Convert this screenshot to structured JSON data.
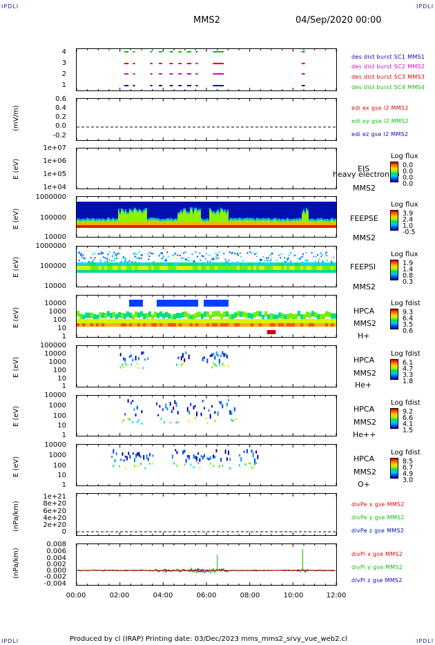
{
  "corners": {
    "tl": "IPDLI",
    "tr": "IPDLI",
    "bl": "IPDLI",
    "br": "IPDLI"
  },
  "header": {
    "spacecraft": "MMS2",
    "date": "04/Sep/2020 00:00"
  },
  "footer": {
    "text": "Produced by cl (IRAP)   Printing date: 03/Dec/2023   mms_mms2_srvy_vue_web2.cl"
  },
  "colors": {
    "red": "#e00000",
    "green": "#00c000",
    "blue": "#0000c0",
    "magenta": "#d000d0"
  },
  "xaxis": {
    "ticks": [
      "00:00",
      "02:00",
      "04:00",
      "06:00",
      "08:00",
      "10:00",
      "12:00"
    ]
  },
  "chart_data": [
    {
      "type": "scatter",
      "name": "burst availability",
      "yticks": [
        "4",
        "3",
        "2",
        "1"
      ],
      "legend": [
        "des dist burst SC1 MMS1",
        "des dist burst SC2 MMS2",
        "des dist burst SC3 MMS3",
        "des dist burst SC4 MMS4"
      ],
      "intervals_hours": [
        [
          2.2,
          2.4
        ],
        [
          2.6,
          2.7
        ],
        [
          3.4,
          3.5
        ],
        [
          3.8,
          3.95
        ],
        [
          4.3,
          4.45
        ],
        [
          4.7,
          4.85
        ],
        [
          5.1,
          5.3
        ],
        [
          5.5,
          5.6
        ],
        [
          6.3,
          6.8
        ],
        [
          10.4,
          10.55
        ]
      ]
    },
    {
      "type": "line",
      "ylabel": "(mV/m)",
      "yticks": [
        "0.6",
        "0.4",
        "0.2",
        "0.0",
        "-0.2"
      ],
      "ylim": [
        -0.2,
        0.6
      ],
      "legend": [
        "edi ex gse l2 MMS2",
        "edi ey gse l2 MMS2",
        "edi ez gse l2 MMS2"
      ]
    },
    {
      "type": "heatmap",
      "ylabel": "E (eV)",
      "yticks": [
        "1e+07",
        "1e+06",
        "1e+05",
        "1e+04"
      ],
      "names": [
        "EIS",
        "MMS2"
      ],
      "overlay": "heavy electron to",
      "cbtitle": "Log flux",
      "cbvals": [
        "0.0",
        "0.0",
        "0.0",
        "0.0"
      ]
    },
    {
      "type": "heatmap",
      "ylabel": "E (eV)",
      "yticks": [
        "1000000",
        "100000",
        "10000"
      ],
      "names": [
        "FEEPSE",
        "MMS2"
      ],
      "cbtitle": "Log flux",
      "cbvals": [
        "3.9",
        "2.4",
        "1.0",
        "-0.5"
      ]
    },
    {
      "type": "heatmap",
      "ylabel": "E (eV)",
      "yticks": [
        "1000000",
        "100000",
        "10000"
      ],
      "names": [
        "FEEPSI",
        "MMS2"
      ],
      "cbtitle": "Log flux",
      "cbvals": [
        "1.9",
        "1.4",
        "0.8",
        "0.3"
      ]
    },
    {
      "type": "heatmap",
      "ylabel": "E (eV)",
      "yticks": [
        "10000",
        "1000",
        "100",
        "10",
        "1"
      ],
      "names": [
        "HPCA",
        "MMS2",
        "H+"
      ],
      "cbtitle": "Log fdist",
      "cbvals": [
        "9.3",
        "6.4",
        "3.5",
        "0.6"
      ]
    },
    {
      "type": "heatmap",
      "ylabel": "E (eV)",
      "yticks": [
        "100000",
        "10000",
        "1000",
        "100",
        "10",
        "1"
      ],
      "names": [
        "HPCA",
        "MMS2",
        "He+"
      ],
      "cbtitle": "Log fdist",
      "cbvals": [
        "6.1",
        "4.7",
        "3.3",
        "1.8"
      ]
    },
    {
      "type": "heatmap",
      "ylabel": "E (eV)",
      "yticks": [
        "10000",
        "1000",
        "100",
        "10",
        "1"
      ],
      "names": [
        "HPCA",
        "MMS2",
        "He++"
      ],
      "cbtitle": "Log fdist",
      "cbvals": [
        "9.2",
        "6.6",
        "4.1",
        "1.5"
      ]
    },
    {
      "type": "heatmap",
      "ylabel": "E (eV)",
      "yticks": [
        "10000",
        "1000",
        "100",
        "10",
        "1"
      ],
      "names": [
        "HPCA",
        "MMS2",
        "O+"
      ],
      "cbtitle": "Log fdist",
      "cbvals": [
        "8.5",
        "6.7",
        "4.9",
        "3.0"
      ]
    },
    {
      "type": "line",
      "ylabel": "(nPa/km)",
      "yticks": [
        "1e+21",
        "8e+20",
        "6e+20",
        "4e+20",
        "2e+20",
        "0"
      ],
      "ylim": [
        0,
        1e+21
      ],
      "legend": [
        "divPe x gse MMS2",
        "divPe y gse MMS2",
        "divPe z gse MMS2"
      ]
    },
    {
      "type": "line",
      "ylabel": "(nPa/km)",
      "yticks": [
        "0.008",
        "0.006",
        "0.004",
        "0.002",
        "0.000",
        "-0.002",
        "-0.004"
      ],
      "ylim": [
        -0.005,
        0.008
      ],
      "legend": [
        "divPi x gse MMS2",
        "divPi y gse MMS2",
        "divPi z gse MMS2"
      ]
    }
  ]
}
